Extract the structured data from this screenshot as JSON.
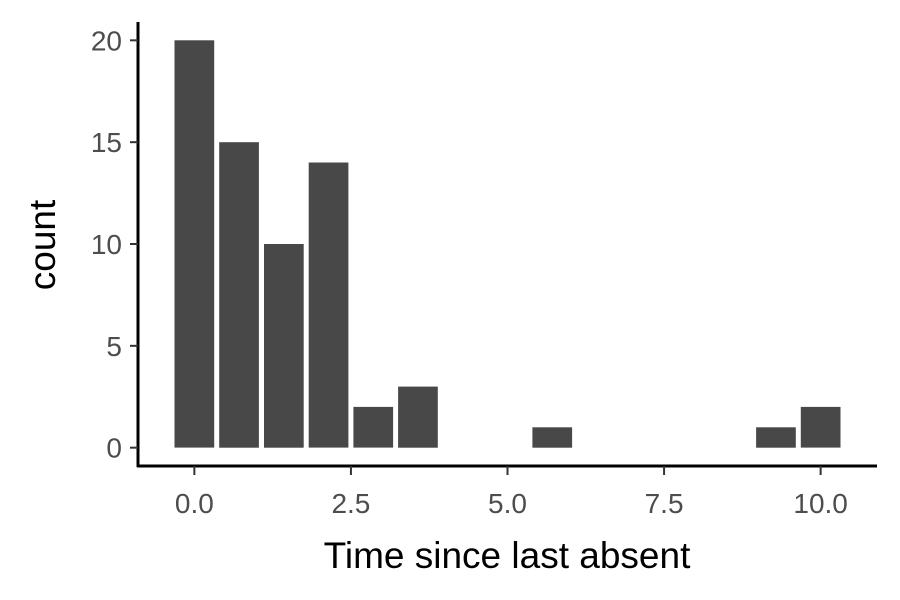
{
  "chart_data": {
    "type": "bar",
    "title": "",
    "xlabel": "Time since last absent",
    "ylabel": "count",
    "x": [
      0.0,
      0.714,
      1.429,
      2.143,
      2.857,
      3.571,
      5.714,
      9.286,
      10.0
    ],
    "values": [
      20,
      15,
      10,
      14,
      2,
      3,
      1,
      1,
      2
    ],
    "bin_width": 0.714,
    "xlim": [
      -0.9,
      10.9
    ],
    "ylim": [
      -0.9,
      20.9
    ],
    "x_ticks": [
      0.0,
      2.5,
      5.0,
      7.5,
      10.0
    ],
    "x_tick_labels": [
      "0.0",
      "2.5",
      "5.0",
      "7.5",
      "10.0"
    ],
    "y_ticks": [
      0,
      5,
      10,
      15,
      20
    ],
    "y_tick_labels": [
      "0",
      "5",
      "10",
      "15",
      "20"
    ],
    "grid": false,
    "bar_color": "#484848"
  }
}
